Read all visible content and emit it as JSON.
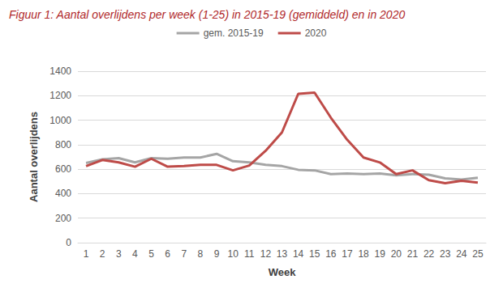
{
  "chart_data": {
    "type": "line",
    "title": "Figuur 1: Aantal overlijdens per week (1-25) in 2015-19 (gemiddeld) en in 2020",
    "x_label": "Week",
    "y_label": "Aantal overlijdens",
    "categories": [
      1,
      2,
      3,
      4,
      5,
      6,
      7,
      8,
      9,
      10,
      11,
      12,
      13,
      14,
      15,
      16,
      17,
      18,
      19,
      20,
      21,
      22,
      23,
      24,
      25
    ],
    "series": [
      {
        "name": "gem. 2015-19",
        "color": "#a5a5a5",
        "values": [
          650,
          680,
          690,
          655,
          690,
          685,
          695,
          695,
          725,
          665,
          655,
          635,
          625,
          595,
          590,
          560,
          565,
          560,
          565,
          550,
          560,
          555,
          525,
          515,
          530
        ]
      },
      {
        "name": "2020",
        "color": "#be4b48",
        "values": [
          625,
          675,
          655,
          620,
          685,
          620,
          625,
          635,
          635,
          590,
          630,
          750,
          900,
          1215,
          1225,
          1020,
          840,
          695,
          655,
          560,
          590,
          510,
          485,
          505,
          490
        ]
      }
    ],
    "ylim": [
      0,
      1400
    ],
    "yticks": [
      0,
      200,
      400,
      600,
      800,
      1000,
      1200,
      1400
    ],
    "grid": true,
    "legend": "top"
  }
}
